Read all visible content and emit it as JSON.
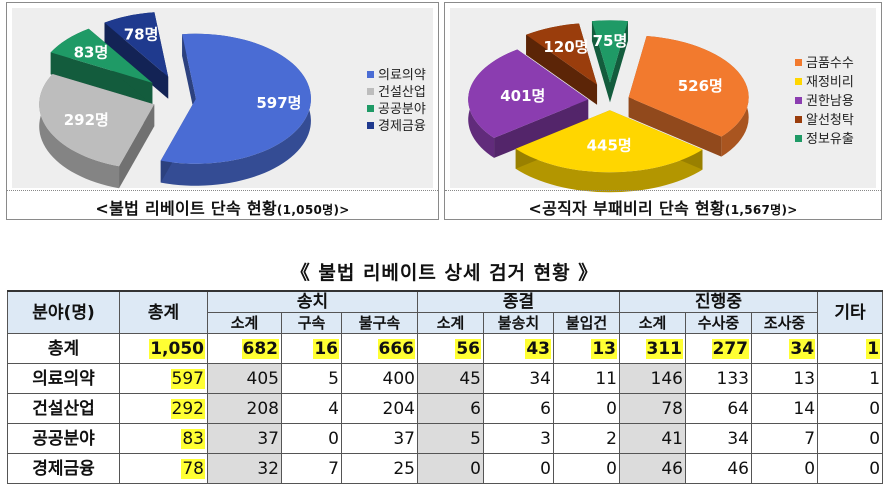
{
  "chart_data": [
    {
      "type": "pie",
      "categories": [
        "의료의약",
        "건설산업",
        "공공분야",
        "경제금융"
      ],
      "values": [
        597,
        292,
        83,
        78
      ],
      "data_labels": [
        "597명",
        "292명",
        "83명",
        "78명"
      ],
      "colors": [
        "#4a6cd4",
        "#bdbdbd",
        "#1f9a66",
        "#1f3a8e"
      ],
      "legend": [
        "의료의약",
        "건설산업",
        "공공분야",
        "경제금융"
      ],
      "legend_position": "right",
      "style": "3d-exploded",
      "title": "<불법 리베이트 단속 현황",
      "subtitle": "(1,050명)>"
    },
    {
      "type": "pie",
      "categories": [
        "금품수수",
        "재정비리",
        "권한남용",
        "알선청탁",
        "정보유출"
      ],
      "values": [
        526,
        445,
        401,
        120,
        75
      ],
      "data_labels": [
        "526명",
        "445명",
        "401명",
        "120명",
        "75명"
      ],
      "colors": [
        "#f27a2e",
        "#ffd600",
        "#8b3db0",
        "#9a3d0c",
        "#1f9a66"
      ],
      "legend": [
        "금품수수",
        "재정비리",
        "권한남용",
        "알선청탁",
        "정보유출"
      ],
      "legend_position": "right",
      "style": "3d-exploded",
      "title": "<공직자 부패비리 단속 현황",
      "subtitle": "(1,567명)>"
    }
  ],
  "table": {
    "title": "《 불법 리베이트 상세 검거 현황 》",
    "headers": {
      "field": "분야(명)",
      "total": "총계",
      "group1": "송치",
      "group2": "종결",
      "group3": "진행중",
      "other": "기타",
      "sub1": [
        "소계",
        "구속",
        "불구속"
      ],
      "sub2": [
        "소계",
        "불송치",
        "불입건"
      ],
      "sub3": [
        "소계",
        "수사중",
        "조사중"
      ]
    },
    "rows": [
      {
        "label": "총계",
        "cells": [
          "1,050",
          "682",
          "16",
          "666",
          "56",
          "43",
          "13",
          "311",
          "277",
          "34",
          "1"
        ]
      },
      {
        "label": "의료의약",
        "cells": [
          "597",
          "405",
          "5",
          "400",
          "45",
          "34",
          "11",
          "146",
          "133",
          "13",
          "1"
        ]
      },
      {
        "label": "건설산업",
        "cells": [
          "292",
          "208",
          "4",
          "204",
          "6",
          "6",
          "0",
          "78",
          "64",
          "14",
          "0"
        ]
      },
      {
        "label": "공공분야",
        "cells": [
          "83",
          "37",
          "0",
          "37",
          "5",
          "3",
          "2",
          "41",
          "34",
          "7",
          "0"
        ]
      },
      {
        "label": "경제금융",
        "cells": [
          "78",
          "32",
          "7",
          "25",
          "0",
          "0",
          "0",
          "46",
          "46",
          "0",
          "0"
        ]
      }
    ]
  }
}
